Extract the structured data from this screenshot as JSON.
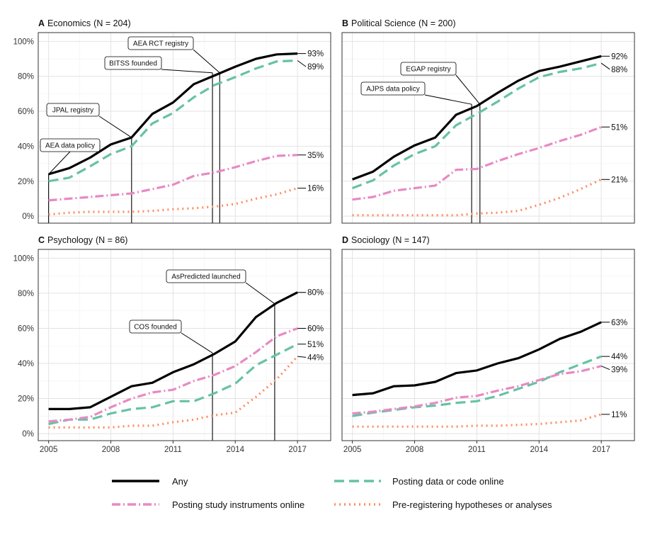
{
  "chart_data": {
    "type": "line",
    "x": [
      2005,
      2006,
      2007,
      2008,
      2009,
      2010,
      2011,
      2012,
      2013,
      2014,
      2015,
      2016,
      2017
    ],
    "xticks": [
      "2005",
      "2008",
      "2011",
      "2014",
      "2017"
    ],
    "yticks": [
      "0%",
      "20%",
      "40%",
      "60%",
      "80%",
      "100%"
    ],
    "ylim": [
      0,
      100
    ],
    "series_names": [
      "Any",
      "Posting data or code online",
      "Posting study instruments online",
      "Pre-registering hypotheses or analyses"
    ],
    "colors": {
      "any": "#000000",
      "data": "#66c2a5",
      "instr": "#e78ac3",
      "prereg": "#fc8d62"
    },
    "panels": [
      {
        "letter": "A",
        "title": "Economics",
        "n_label": "(N = 204)",
        "series": [
          {
            "key": "any",
            "values": [
              24,
              27.5,
              33.5,
              41,
              45,
              58.5,
              65,
              75.5,
              80.5,
              85.5,
              90,
              92.5,
              93
            ]
          },
          {
            "key": "data",
            "values": [
              20,
              22,
              28.5,
              35.5,
              40,
              53,
              59,
              68,
              75,
              79.5,
              84.5,
              88.5,
              89
            ]
          },
          {
            "key": "instr",
            "values": [
              9,
              10,
              11,
              12,
              13,
              15.5,
              18,
              23,
              25,
              28,
              31.5,
              34.5,
              35
            ]
          },
          {
            "key": "prereg",
            "values": [
              1,
              2,
              2.5,
              2.5,
              2.5,
              3,
              4,
              4.5,
              5.5,
              7,
              10,
              12.5,
              16
            ]
          }
        ],
        "end_labels": [
          {
            "key": "any",
            "text": "93%"
          },
          {
            "key": "data",
            "text": "89%"
          },
          {
            "key": "instr",
            "text": "35%"
          },
          {
            "key": "prereg",
            "text": "16%"
          }
        ],
        "events": [
          {
            "label": "AEA data policy",
            "year": 2005.0
          },
          {
            "label": "JPAL registry",
            "year": 2009.0
          },
          {
            "label": "BITSS founded",
            "year": 2012.9
          },
          {
            "label": "AEA RCT registry",
            "year": 2013.25
          }
        ]
      },
      {
        "letter": "B",
        "title": "Political Science",
        "n_label": "(N = 200)",
        "series": [
          {
            "key": "any",
            "values": [
              21,
              25.5,
              34,
              40.5,
              45,
              58,
              63,
              70.5,
              77.5,
              83,
              85.5,
              88.5,
              91.5
            ]
          },
          {
            "key": "data",
            "values": [
              16,
              20.5,
              29,
              35.5,
              40,
              52,
              58.5,
              65.5,
              73,
              79.5,
              82.5,
              84.5,
              87.5
            ]
          },
          {
            "key": "instr",
            "values": [
              9.5,
              11,
              14.5,
              16,
              17.5,
              26.5,
              27,
              31.5,
              35.5,
              39,
              43,
              46.5,
              51
            ]
          },
          {
            "key": "prereg",
            "values": [
              0.5,
              0.5,
              0.5,
              0.5,
              0.5,
              0.5,
              1.5,
              2,
              3,
              6.5,
              10.5,
              15.5,
              21
            ]
          }
        ],
        "end_labels": [
          {
            "key": "any",
            "text": "92%"
          },
          {
            "key": "data",
            "text": "88%"
          },
          {
            "key": "instr",
            "text": "51%"
          },
          {
            "key": "prereg",
            "text": "21%"
          }
        ],
        "events": [
          {
            "label": "AJPS data policy",
            "year": 2010.75
          },
          {
            "label": "EGAP registry",
            "year": 2011.15
          }
        ]
      },
      {
        "letter": "C",
        "title": "Psychology",
        "n_label": "(N = 86)",
        "series": [
          {
            "key": "any",
            "values": [
              14,
              14,
              15,
              21,
              27,
              29,
              35,
              39.5,
              45.5,
              52.5,
              66.5,
              74.5,
              80.5
            ]
          },
          {
            "key": "data",
            "values": [
              5.5,
              8,
              8,
              11.5,
              14,
              15,
              18.5,
              18.5,
              23,
              28.5,
              39,
              45,
              51
            ]
          },
          {
            "key": "instr",
            "values": [
              7,
              8,
              9.5,
              15,
              20,
              23.5,
              25,
              30,
              33.5,
              38.5,
              46.5,
              55.5,
              60
            ]
          },
          {
            "key": "prereg",
            "values": [
              3.5,
              3.5,
              3.5,
              3.5,
              4.5,
              4.5,
              6.5,
              8,
              10.5,
              12,
              21,
              31,
              44
            ]
          }
        ],
        "end_labels": [
          {
            "key": "any",
            "text": "80%"
          },
          {
            "key": "instr",
            "text": "60%"
          },
          {
            "key": "data",
            "text": "51%"
          },
          {
            "key": "prereg",
            "text": "44%"
          }
        ],
        "events": [
          {
            "label": "COS founded",
            "year": 2012.9
          },
          {
            "label": "AsPredicted launched",
            "year": 2015.9
          }
        ]
      },
      {
        "letter": "D",
        "title": "Sociology",
        "n_label": "(N = 147)",
        "series": [
          {
            "key": "any",
            "values": [
              22,
              23,
              27,
              27.5,
              29.5,
              34.5,
              36,
              40,
              43,
              48,
              54,
              58,
              63.5
            ]
          },
          {
            "key": "data",
            "values": [
              10,
              12,
              13.5,
              15,
              16,
              17.5,
              18.5,
              21.5,
              25.5,
              29.5,
              35,
              39.5,
              44
            ]
          },
          {
            "key": "instr",
            "values": [
              11.5,
              12.5,
              14,
              15.5,
              17.5,
              20.5,
              21.5,
              24.5,
              27,
              30.5,
              34,
              35.5,
              38.5
            ]
          },
          {
            "key": "prereg",
            "values": [
              4,
              4,
              4,
              4,
              4,
              4,
              4.5,
              4.5,
              5,
              5.5,
              6.5,
              7.5,
              11
            ]
          }
        ],
        "end_labels": [
          {
            "key": "any",
            "text": "63%"
          },
          {
            "key": "data",
            "text": "44%"
          },
          {
            "key": "instr",
            "text": "39%"
          },
          {
            "key": "prereg",
            "text": "11%"
          }
        ],
        "events": []
      }
    ]
  }
}
